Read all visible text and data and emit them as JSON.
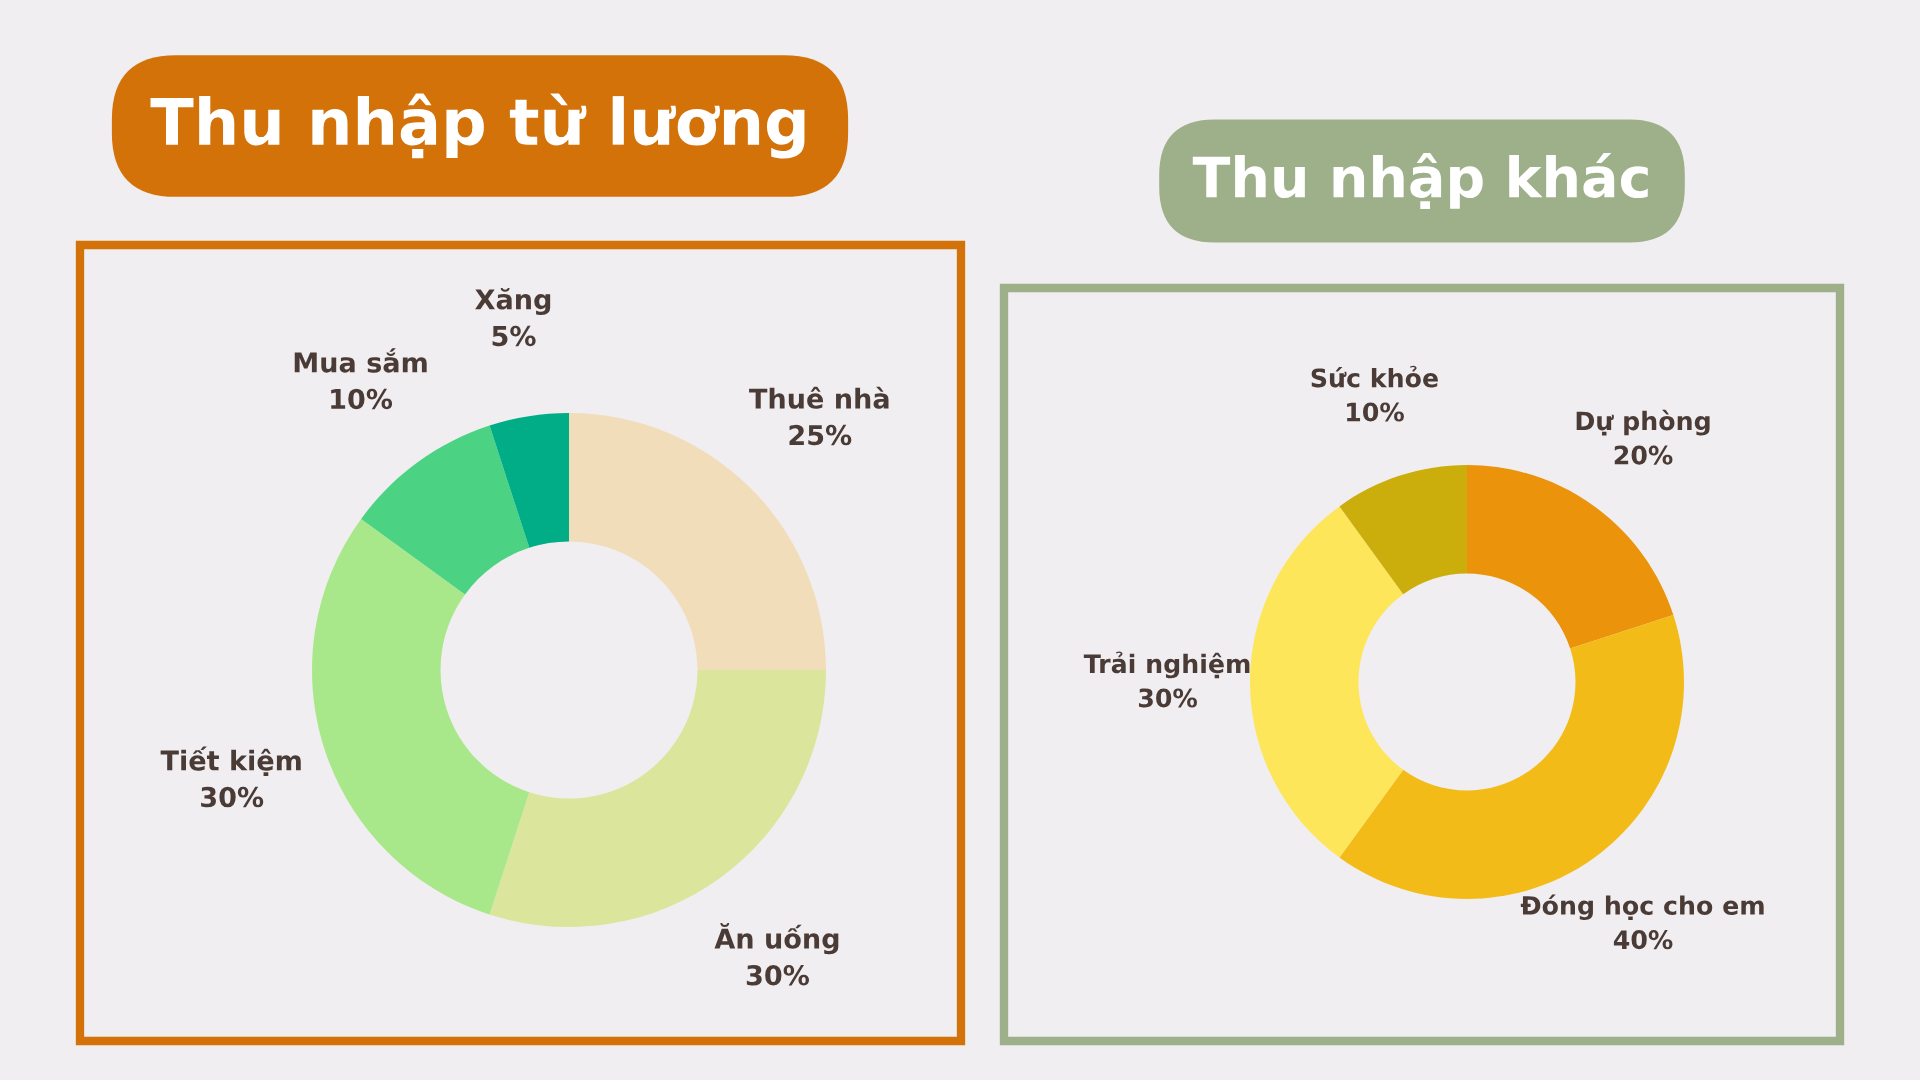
{
  "chart_data": [
    {
      "type": "donut",
      "title": "Thu nhập từ lương",
      "categories": [
        "Thuê nhà",
        "Ăn uống",
        "Tiết kiệm",
        "Mua sắm",
        "Xăng"
      ],
      "values": [
        25,
        30,
        30,
        10,
        5
      ],
      "colors": [
        "#f1ddb9",
        "#dbe59b",
        "#a8e88a",
        "#4cd283",
        "#00ad86"
      ],
      "value_labels": [
        "25%",
        "30%",
        "30%",
        "10%",
        "5%"
      ]
    },
    {
      "type": "donut",
      "title": "Thu nhập khác",
      "categories": [
        "Dự phòng",
        "Đóng học cho em",
        "Trải nghiệm",
        "Sức khỏe"
      ],
      "values": [
        20,
        40,
        30,
        10
      ],
      "colors": [
        "#ea930b",
        "#f3bb18",
        "#fde65a",
        "#cbae0b"
      ],
      "value_labels": [
        "20%",
        "40%",
        "30%",
        "10%"
      ]
    }
  ]
}
